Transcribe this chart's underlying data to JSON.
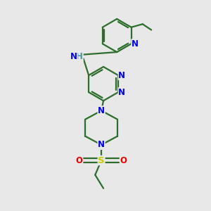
{
  "bg_color": "#e8e8e8",
  "bond_color": "#2d6e2d",
  "N_color": "#0000ee",
  "O_color": "#ee0000",
  "S_color": "#cccc00",
  "H_color": "#4a9a9a",
  "line_width": 1.6,
  "font_size": 8.5,
  "figsize": [
    3.0,
    3.0
  ],
  "dpi": 100,
  "xlim": [
    0,
    10
  ],
  "ylim": [
    0,
    10
  ]
}
